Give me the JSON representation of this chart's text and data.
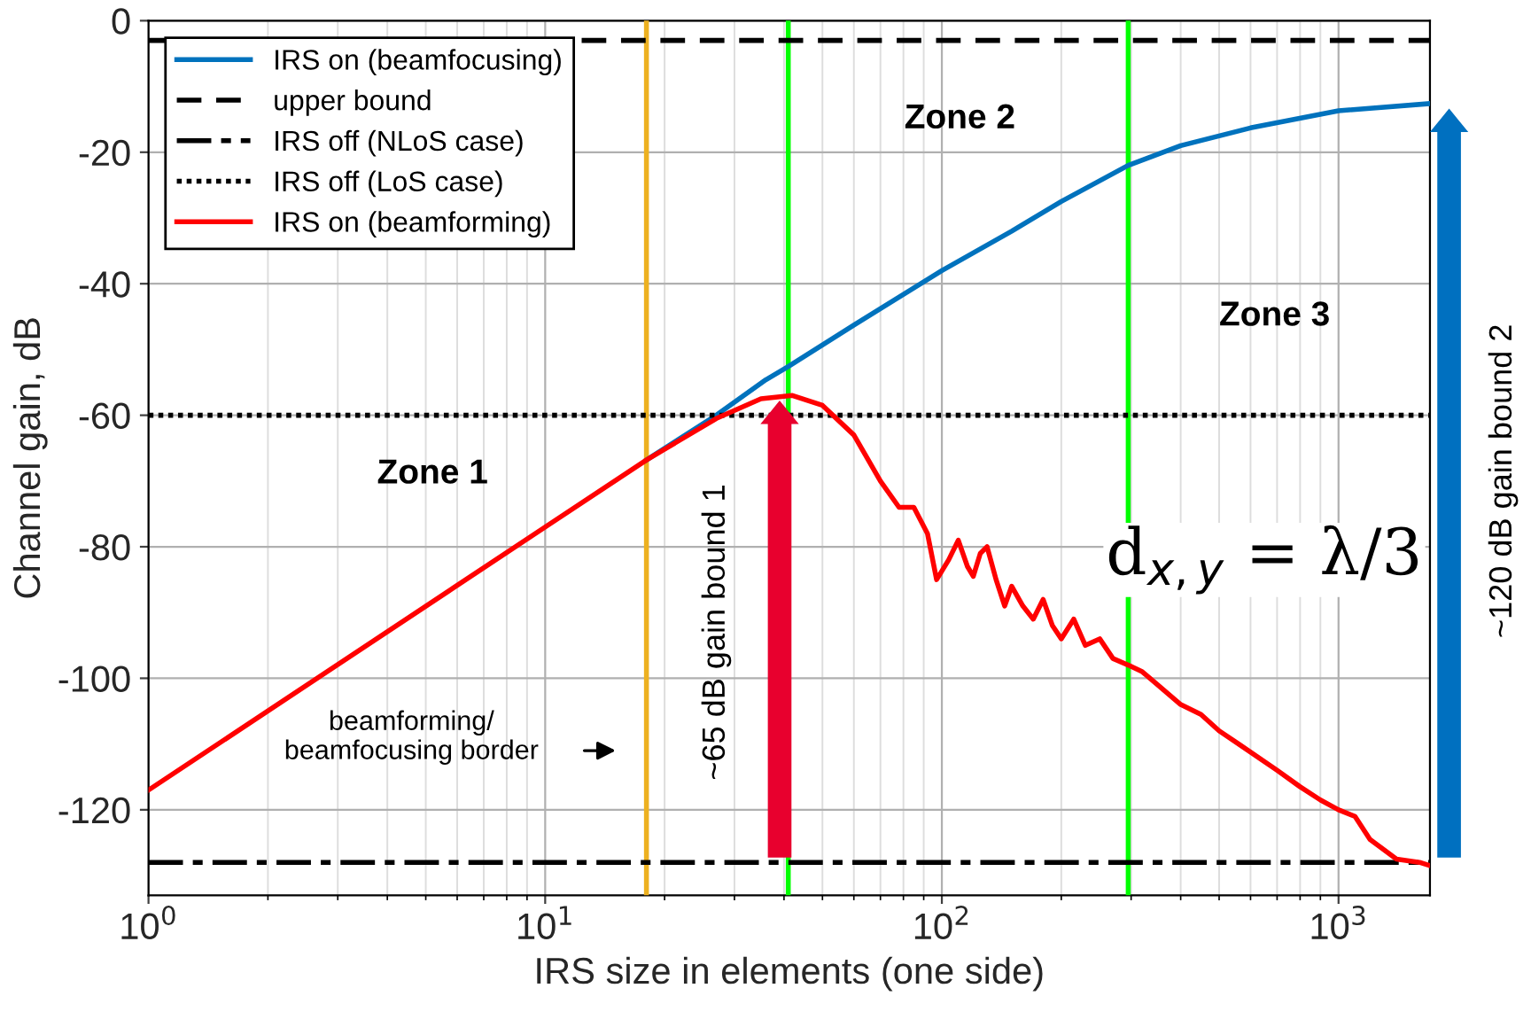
{
  "chart_data": {
    "type": "line",
    "xlabel": "IRS size in elements (one side)",
    "ylabel": "Channel gain, dB",
    "log": "x",
    "xlim": [
      1,
      1700
    ],
    "ylim": [
      -133,
      0
    ],
    "xticks": [
      {
        "value": 1,
        "label": "10$^{0}$"
      },
      {
        "value": 10,
        "label": "10$^{1}$"
      },
      {
        "value": 100,
        "label": "10$^{2}$"
      },
      {
        "value": 1000,
        "label": "10$^{3}$"
      }
    ],
    "yticks": [
      -120,
      -100,
      -80,
      -60,
      -40,
      -20,
      0
    ],
    "grid": true,
    "legend": "top left",
    "series": [
      {
        "name": "IRS on (beamfocusing)",
        "color": "#0072bd",
        "line_style": "solid",
        "x": [
          18,
          27,
          36,
          41,
          60,
          100,
          150,
          200,
          295,
          400,
          600,
          1000,
          1700
        ],
        "values": [
          -66.8,
          -60,
          -54.6,
          -52.6,
          -46.3,
          -38,
          -32,
          -27.5,
          -22,
          -19,
          -16.3,
          -13.7,
          -12.6
        ]
      },
      {
        "name": "upper bound",
        "color": "#000000",
        "line_style": "dashed",
        "x": [
          1,
          1700
        ],
        "values": [
          -3,
          -3
        ]
      },
      {
        "name": "IRS off (NLoS case)",
        "color": "#000000",
        "line_style": "dashdot",
        "x": [
          1,
          1700
        ],
        "values": [
          -128,
          -128
        ]
      },
      {
        "name": "IRS off (LoS case)",
        "color": "#000000",
        "line_style": "dotted",
        "x": [
          1,
          1700
        ],
        "values": [
          -60,
          -60
        ]
      },
      {
        "name": "IRS on (beamforming)",
        "color": "#ff0000",
        "line_style": "solid",
        "x": [
          1,
          10,
          18,
          27,
          35,
          42,
          50,
          60,
          70,
          78,
          85,
          92,
          97,
          104,
          110,
          116,
          120,
          125,
          130,
          137,
          144,
          150,
          160,
          170,
          180,
          190,
          200,
          215,
          230,
          250,
          270,
          295,
          320,
          350,
          400,
          450,
          500,
          560,
          700,
          800,
          900,
          1000,
          1100,
          1200,
          1400,
          1600,
          1700
        ],
        "values": [
          -117,
          -77,
          -66.8,
          -60.5,
          -57.5,
          -57,
          -58.5,
          -63,
          -70,
          -74,
          -74,
          -78,
          -85,
          -82,
          -79,
          -83,
          -84.5,
          -81,
          -80,
          -85,
          -89,
          -86,
          -89,
          -91,
          -88,
          -92,
          -94,
          -91,
          -95,
          -94,
          -97,
          -98,
          -99,
          -101,
          -104,
          -105.5,
          -108,
          -110,
          -114,
          -116.5,
          -118.5,
          -120,
          -121,
          -124.5,
          -127.5,
          -128,
          -128.5
        ]
      }
    ],
    "ref_lines": [
      {
        "axis": "x",
        "value": 18,
        "color": "#edb120"
      },
      {
        "axis": "x",
        "value": 41,
        "color": "#00ff00"
      },
      {
        "axis": "x",
        "value": 295,
        "color": "#00ff00"
      }
    ],
    "annotations": [
      "Zone 1",
      "Zone 2",
      "Zone 3",
      "d$_{x,y}$ = λ/3",
      "beamforming/\nbeamfocusing border",
      "~65 dB gain bound 1",
      "~120 dB gain bound 2"
    ]
  }
}
